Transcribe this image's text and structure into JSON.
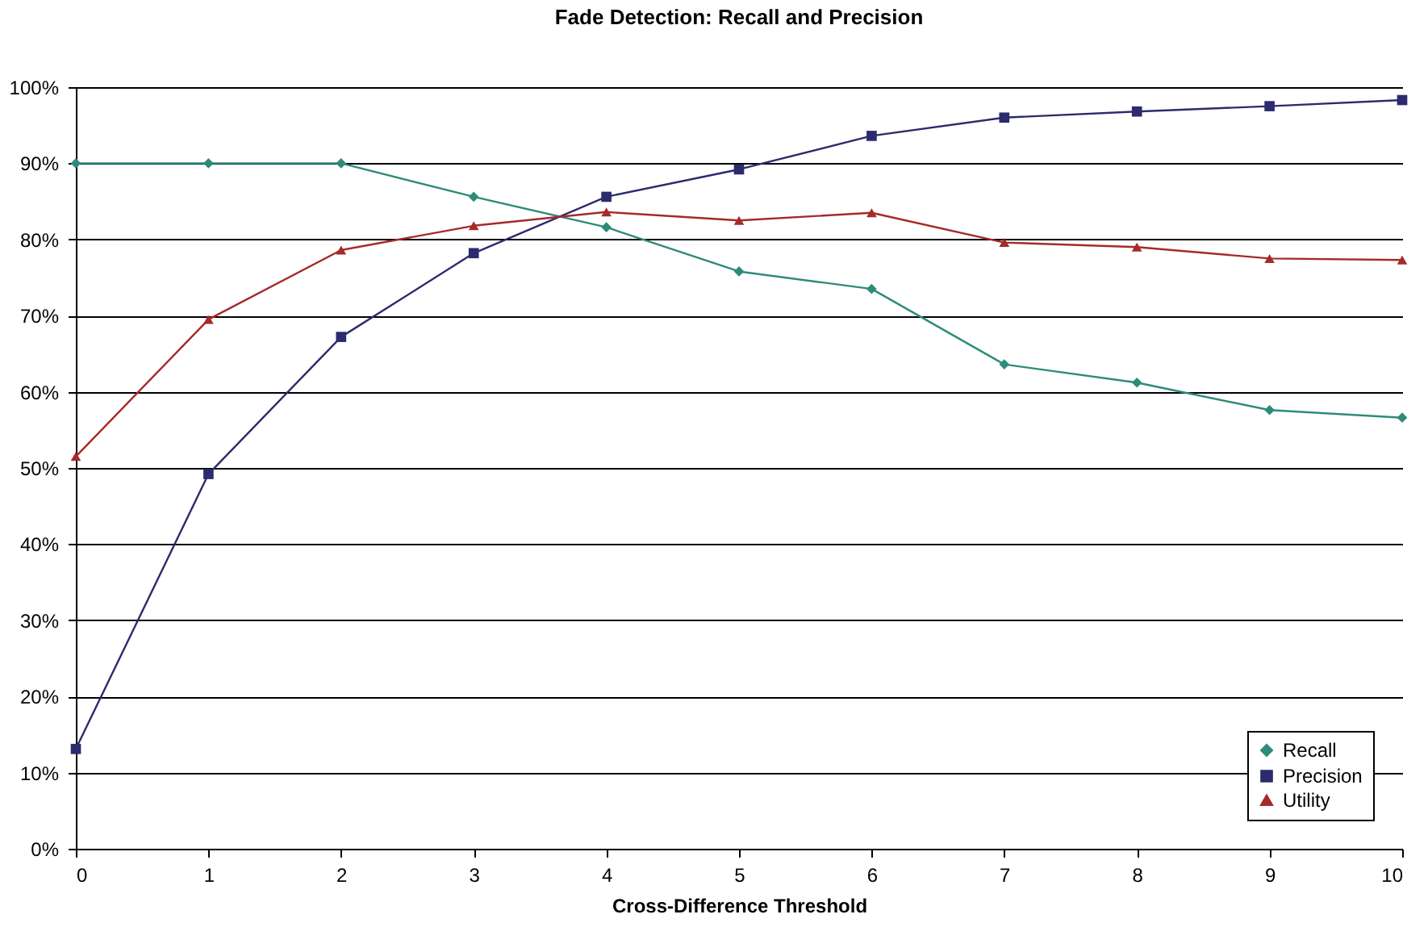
{
  "chart_data": {
    "type": "line",
    "title": "Fade Detection: Recall and Precision",
    "xlabel": "Cross-Difference Threshold",
    "x": [
      0,
      1,
      2,
      3,
      4,
      5,
      6,
      7,
      8,
      9,
      10
    ],
    "series": [
      {
        "name": "Recall",
        "color": "#2e8b7a",
        "marker": "diamond",
        "values": [
          90,
          90,
          90,
          85.6,
          81.6,
          75.8,
          73.5,
          63.6,
          61.2,
          57.6,
          56.6
        ]
      },
      {
        "name": "Precision",
        "color": "#2b2b6e",
        "marker": "square",
        "values": [
          13.1,
          49.2,
          67.2,
          78.2,
          85.6,
          89.2,
          93.6,
          96.0,
          96.8,
          97.5,
          98.3
        ]
      },
      {
        "name": "Utility",
        "color": "#a52a2a",
        "marker": "triangle",
        "values": [
          51.5,
          69.5,
          78.6,
          81.8,
          83.6,
          82.5,
          83.5,
          79.6,
          79.0,
          77.5,
          77.3
        ]
      }
    ],
    "xlim": [
      0,
      10
    ],
    "xticks": [
      0,
      1,
      2,
      3,
      4,
      5,
      6,
      7,
      8,
      9,
      10
    ],
    "ylim": [
      0,
      100
    ],
    "yticks": [
      {
        "value": 0,
        "label": "0%"
      },
      {
        "value": 10,
        "label": "10%"
      },
      {
        "value": 20,
        "label": "20%"
      },
      {
        "value": 30,
        "label": "30%"
      },
      {
        "value": 40,
        "label": "40%"
      },
      {
        "value": 50,
        "label": "50%"
      },
      {
        "value": 60,
        "label": "60%"
      },
      {
        "value": 70,
        "label": "70%"
      },
      {
        "value": 80,
        "label": "80%"
      },
      {
        "value": 90,
        "label": "90%"
      },
      {
        "value": 100,
        "label": "100%"
      }
    ],
    "grid": "y",
    "legend": "bottom right",
    "line_style": "solid"
  }
}
